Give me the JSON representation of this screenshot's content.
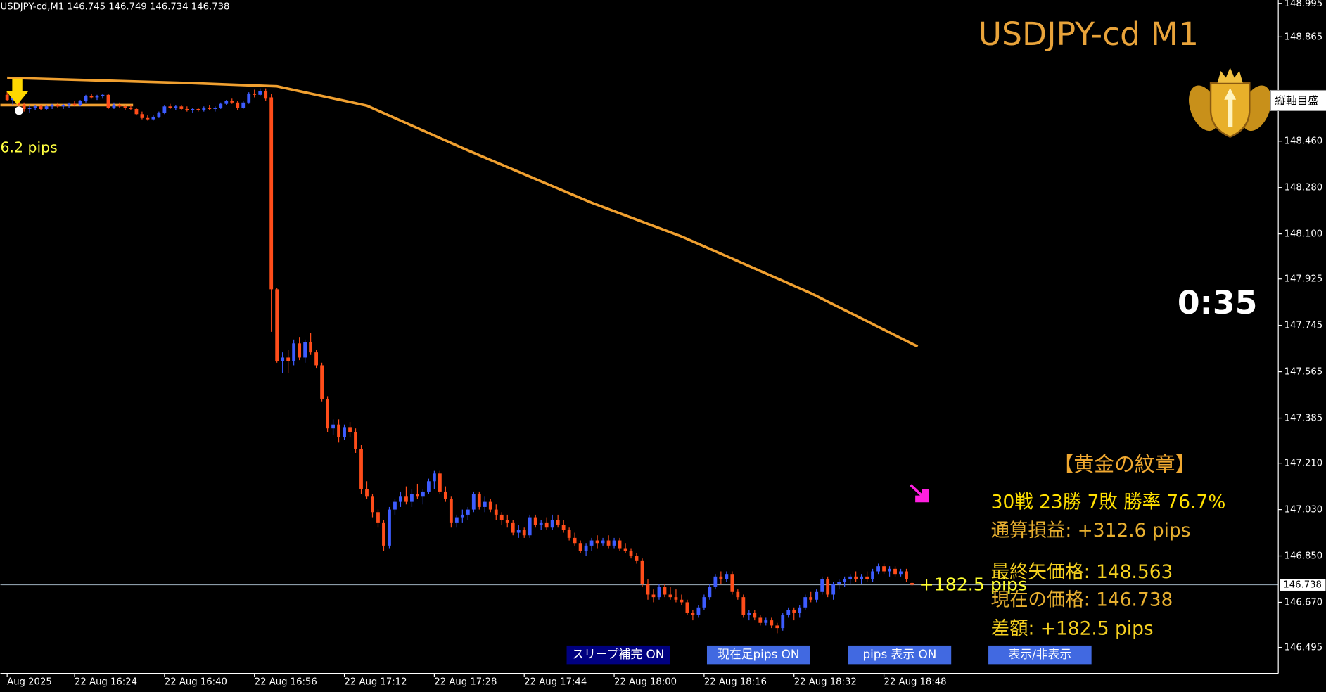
{
  "header_text": "USDJPY-cd,M1  146.745 146.749 146.734 146.738",
  "title": "USDJPY-cd M1",
  "countdown": "0:35",
  "scale_button": "縦軸目盛",
  "trade_label": "6.2 pips",
  "current_pips_label": "+182.5 pips",
  "panel": {
    "heading": "【黄金の紋章】",
    "record": "30戦 23勝 7敗  勝率 76.7%",
    "total": "通算損益:  +312.6 pips",
    "last_arrow": "最終矢価格: 148.563",
    "current": "現在の価格: 146.738",
    "diff": "差額:     +182.5 pips"
  },
  "buttons": [
    "スリープ補完 ON",
    "現在足pips ON",
    "pips 表示  ON",
    "表示/非表示"
  ],
  "chart": {
    "ylim": [
      146.394,
      149.008
    ],
    "yticks": [
      148.995,
      148.865,
      {
        "value": 148.46,
        "label": "148.460"
      },
      {
        "value": 148.28,
        "label": "148.280"
      },
      {
        "value": 148.1,
        "label": "148.100"
      },
      147.925,
      147.745,
      147.565,
      147.385,
      {
        "value": 147.21,
        "label": "147.210"
      },
      {
        "value": 147.03,
        "label": "147.030"
      },
      {
        "value": 146.85,
        "label": "146.850"
      },
      {
        "value": 146.67,
        "label": "146.670"
      },
      146.495
    ],
    "xticks": [
      {
        "value": 0,
        "label": "Aug 2025"
      },
      {
        "value": 12,
        "label": "22 Aug 16:24"
      },
      {
        "value": 28,
        "label": "22 Aug 16:40"
      },
      {
        "value": 44,
        "label": "22 Aug 16:56"
      },
      {
        "value": 60,
        "label": "22 Aug 17:12"
      },
      {
        "value": 76,
        "label": "22 Aug 17:28"
      },
      {
        "value": 92,
        "label": "22 Aug 17:44"
      },
      {
        "value": 108,
        "label": "22 Aug 18:00"
      },
      {
        "value": 124,
        "label": "22 Aug 18:16"
      },
      {
        "value": 140,
        "label": "22 Aug 18:32"
      },
      {
        "value": 156,
        "label": "22 Aug 18:48"
      }
    ],
    "current_price": 146.738,
    "entry_line": 148.6,
    "up_color": "#3d5cff",
    "down_color": "#ff4d1a",
    "ma": {
      "color": "#f0a030",
      "x": [
        0,
        32,
        48,
        64,
        82,
        104,
        120,
        143,
        162
      ],
      "values": [
        148.706,
        148.686,
        148.673,
        148.598,
        148.424,
        148.221,
        148.09,
        147.87,
        147.663
      ]
    },
    "candles": [
      [
        148.64,
        148.65,
        148.615,
        148.62
      ],
      [
        148.62,
        148.64,
        148.6,
        148.63
      ],
      [
        148.63,
        148.635,
        148.59,
        148.6
      ],
      [
        148.6,
        148.61,
        148.575,
        148.585
      ],
      [
        148.585,
        148.6,
        148.57,
        148.59
      ],
      [
        148.59,
        148.6,
        148.58,
        148.595
      ],
      [
        148.595,
        148.6,
        148.58,
        148.585
      ],
      [
        148.585,
        148.6,
        148.58,
        148.595
      ],
      [
        148.595,
        148.605,
        148.585,
        148.6
      ],
      [
        148.6,
        148.61,
        148.59,
        148.595
      ],
      [
        148.595,
        148.605,
        148.585,
        148.6
      ],
      [
        148.6,
        148.61,
        148.59,
        148.605
      ],
      [
        148.605,
        148.615,
        148.595,
        148.6
      ],
      [
        148.6,
        148.62,
        148.595,
        148.615
      ],
      [
        148.615,
        148.64,
        148.61,
        148.635
      ],
      [
        148.635,
        148.645,
        148.625,
        148.63
      ],
      [
        148.63,
        148.64,
        148.62,
        148.635
      ],
      [
        148.635,
        148.645,
        148.625,
        148.64
      ],
      [
        148.64,
        148.645,
        148.585,
        148.59
      ],
      [
        148.59,
        148.61,
        148.585,
        148.6
      ],
      [
        148.6,
        148.61,
        148.59,
        148.595
      ],
      [
        148.595,
        148.6,
        148.58,
        148.59
      ],
      [
        148.59,
        148.6,
        148.58,
        148.585
      ],
      [
        148.585,
        148.59,
        148.56,
        148.565
      ],
      [
        148.565,
        148.575,
        148.545,
        148.55
      ],
      [
        148.55,
        148.56,
        148.54,
        148.545
      ],
      [
        148.545,
        148.56,
        148.54,
        148.555
      ],
      [
        148.555,
        148.575,
        148.55,
        148.57
      ],
      [
        148.57,
        148.6,
        148.565,
        148.595
      ],
      [
        148.595,
        148.605,
        148.585,
        148.59
      ],
      [
        148.59,
        148.6,
        148.58,
        148.595
      ],
      [
        148.595,
        148.6,
        148.58,
        148.585
      ],
      [
        148.585,
        148.595,
        148.575,
        148.58
      ],
      [
        148.58,
        148.59,
        148.57,
        148.585
      ],
      [
        148.585,
        148.59,
        148.575,
        148.58
      ],
      [
        148.58,
        148.595,
        148.575,
        148.59
      ],
      [
        148.59,
        148.6,
        148.58,
        148.585
      ],
      [
        148.585,
        148.595,
        148.575,
        148.59
      ],
      [
        148.59,
        148.61,
        148.585,
        148.605
      ],
      [
        148.605,
        148.62,
        148.6,
        148.615
      ],
      [
        148.615,
        148.625,
        148.605,
        148.61
      ],
      [
        148.61,
        148.615,
        148.58,
        148.59
      ],
      [
        148.59,
        148.615,
        148.585,
        148.61
      ],
      [
        148.61,
        148.65,
        148.605,
        148.645
      ],
      [
        148.645,
        148.66,
        148.63,
        148.64
      ],
      [
        148.64,
        148.665,
        148.635,
        148.655
      ],
      [
        148.655,
        148.665,
        148.615,
        148.625
      ],
      [
        148.63,
        148.645,
        147.72,
        147.885
      ],
      [
        147.885,
        147.89,
        147.6,
        147.605
      ],
      [
        147.605,
        147.64,
        147.56,
        147.62
      ],
      [
        147.62,
        147.65,
        147.56,
        147.605
      ],
      [
        147.605,
        147.69,
        147.59,
        147.675
      ],
      [
        147.675,
        147.7,
        147.61,
        147.62
      ],
      [
        147.62,
        147.69,
        147.6,
        147.68
      ],
      [
        147.68,
        147.715,
        147.63,
        147.64
      ],
      [
        147.64,
        147.65,
        147.58,
        147.59
      ],
      [
        147.59,
        147.6,
        147.45,
        147.46
      ],
      [
        147.46,
        147.47,
        147.33,
        147.345
      ],
      [
        147.345,
        147.38,
        147.32,
        147.36
      ],
      [
        147.36,
        147.38,
        147.29,
        147.31
      ],
      [
        147.31,
        147.36,
        147.3,
        147.35
      ],
      [
        147.35,
        147.37,
        147.31,
        147.33
      ],
      [
        147.33,
        147.345,
        147.25,
        147.265
      ],
      [
        147.265,
        147.28,
        147.09,
        147.11
      ],
      [
        147.11,
        147.14,
        147.07,
        147.08
      ],
      [
        147.08,
        147.09,
        147.0,
        147.02
      ],
      [
        147.02,
        147.03,
        146.96,
        146.98
      ],
      [
        146.98,
        146.99,
        146.87,
        146.89
      ],
      [
        146.89,
        147.04,
        146.88,
        147.03
      ],
      [
        147.03,
        147.07,
        147.01,
        147.06
      ],
      [
        147.06,
        147.1,
        147.04,
        147.08
      ],
      [
        147.08,
        147.12,
        147.05,
        147.06
      ],
      [
        147.06,
        147.11,
        147.04,
        147.09
      ],
      [
        147.09,
        147.13,
        147.07,
        147.08
      ],
      [
        147.08,
        147.11,
        147.05,
        147.1
      ],
      [
        147.1,
        147.15,
        147.09,
        147.14
      ],
      [
        147.14,
        147.18,
        147.11,
        147.17
      ],
      [
        147.17,
        147.18,
        147.09,
        147.1
      ],
      [
        147.1,
        147.12,
        147.06,
        147.07
      ],
      [
        147.07,
        147.08,
        146.96,
        146.98
      ],
      [
        146.98,
        147.01,
        146.96,
        147.0
      ],
      [
        147.0,
        147.03,
        146.98,
        147.01
      ],
      [
        147.01,
        147.04,
        146.99,
        147.03
      ],
      [
        147.03,
        147.1,
        147.02,
        147.09
      ],
      [
        147.09,
        147.1,
        147.03,
        147.04
      ],
      [
        147.04,
        147.08,
        147.02,
        147.06
      ],
      [
        147.06,
        147.07,
        147.02,
        147.03
      ],
      [
        147.03,
        147.05,
        146.99,
        147.01
      ],
      [
        147.01,
        147.02,
        146.97,
        146.99
      ],
      [
        146.99,
        147.01,
        146.96,
        146.98
      ],
      [
        146.98,
        146.99,
        146.93,
        146.94
      ],
      [
        146.94,
        146.97,
        146.92,
        146.95
      ],
      [
        146.95,
        146.96,
        146.92,
        146.93
      ],
      [
        146.93,
        147.01,
        146.92,
        147.0
      ],
      [
        147.0,
        147.01,
        146.96,
        146.97
      ],
      [
        146.97,
        146.99,
        146.95,
        146.98
      ],
      [
        146.98,
        147.0,
        146.95,
        146.96
      ],
      [
        146.96,
        147.01,
        146.95,
        146.99
      ],
      [
        146.99,
        147.01,
        146.96,
        146.97
      ],
      [
        146.97,
        146.99,
        146.94,
        146.95
      ],
      [
        146.95,
        146.96,
        146.91,
        146.92
      ],
      [
        146.92,
        146.94,
        146.89,
        146.9
      ],
      [
        146.9,
        146.91,
        146.86,
        146.87
      ],
      [
        146.87,
        146.9,
        146.85,
        146.89
      ],
      [
        146.89,
        146.92,
        146.87,
        146.91
      ],
      [
        146.91,
        146.93,
        146.88,
        146.9
      ],
      [
        146.9,
        146.92,
        146.89,
        146.91
      ],
      [
        146.91,
        146.93,
        146.88,
        146.89
      ],
      [
        146.89,
        146.92,
        146.88,
        146.91
      ],
      [
        146.91,
        146.92,
        146.87,
        146.88
      ],
      [
        146.88,
        146.9,
        146.86,
        146.87
      ],
      [
        146.87,
        146.88,
        146.84,
        146.85
      ],
      [
        146.85,
        146.86,
        146.82,
        146.83
      ],
      [
        146.83,
        146.84,
        146.73,
        146.74
      ],
      [
        146.74,
        146.76,
        146.68,
        146.7
      ],
      [
        146.7,
        146.72,
        146.67,
        146.69
      ],
      [
        146.69,
        146.74,
        146.68,
        146.73
      ],
      [
        146.73,
        146.74,
        146.69,
        146.7
      ],
      [
        146.7,
        146.73,
        146.68,
        146.69
      ],
      [
        146.69,
        146.72,
        146.67,
        146.68
      ],
      [
        146.68,
        146.7,
        146.66,
        146.67
      ],
      [
        146.67,
        146.68,
        146.62,
        146.63
      ],
      [
        146.63,
        146.64,
        146.6,
        146.62
      ],
      [
        146.62,
        146.66,
        146.61,
        146.65
      ],
      [
        146.65,
        146.7,
        146.64,
        146.69
      ],
      [
        146.69,
        146.74,
        146.68,
        146.73
      ],
      [
        146.73,
        146.78,
        146.72,
        146.77
      ],
      [
        146.77,
        146.79,
        146.74,
        146.76
      ],
      [
        146.76,
        146.79,
        146.75,
        146.78
      ],
      [
        146.78,
        146.79,
        146.7,
        146.71
      ],
      [
        146.71,
        146.72,
        146.68,
        146.69
      ],
      [
        146.69,
        146.7,
        146.61,
        146.62
      ],
      [
        146.62,
        146.64,
        146.6,
        146.63
      ],
      [
        146.63,
        146.64,
        146.6,
        146.61
      ],
      [
        146.61,
        146.62,
        146.58,
        146.59
      ],
      [
        146.59,
        146.61,
        146.58,
        146.6
      ],
      [
        146.6,
        146.61,
        146.57,
        146.58
      ],
      [
        146.58,
        146.59,
        146.55,
        146.57
      ],
      [
        146.57,
        146.63,
        146.56,
        146.62
      ],
      [
        146.62,
        146.65,
        146.61,
        146.64
      ],
      [
        146.64,
        146.65,
        146.6,
        146.63
      ],
      [
        146.63,
        146.66,
        146.61,
        146.65
      ],
      [
        146.65,
        146.7,
        146.64,
        146.69
      ],
      [
        146.69,
        146.71,
        146.67,
        146.68
      ],
      [
        146.68,
        146.72,
        146.67,
        146.71
      ],
      [
        146.71,
        146.77,
        146.7,
        146.76
      ],
      [
        146.76,
        146.77,
        146.69,
        146.7
      ],
      [
        146.7,
        146.75,
        146.68,
        146.74
      ],
      [
        146.74,
        146.76,
        146.72,
        146.75
      ],
      [
        146.75,
        146.77,
        146.73,
        146.76
      ],
      [
        146.76,
        146.78,
        146.74,
        146.77
      ],
      [
        146.77,
        146.79,
        146.75,
        146.76
      ],
      [
        146.76,
        146.78,
        146.74,
        146.77
      ],
      [
        146.77,
        146.79,
        146.75,
        146.76
      ],
      [
        146.76,
        146.8,
        146.75,
        146.79
      ],
      [
        146.79,
        146.82,
        146.78,
        146.81
      ],
      [
        146.81,
        146.82,
        146.78,
        146.79
      ],
      [
        146.79,
        146.81,
        146.77,
        146.8
      ],
      [
        146.8,
        146.81,
        146.77,
        146.78
      ],
      [
        146.78,
        146.8,
        146.77,
        146.79
      ],
      [
        146.79,
        146.8,
        146.75,
        146.76
      ],
      [
        146.745,
        146.749,
        146.734,
        146.738
      ]
    ]
  }
}
